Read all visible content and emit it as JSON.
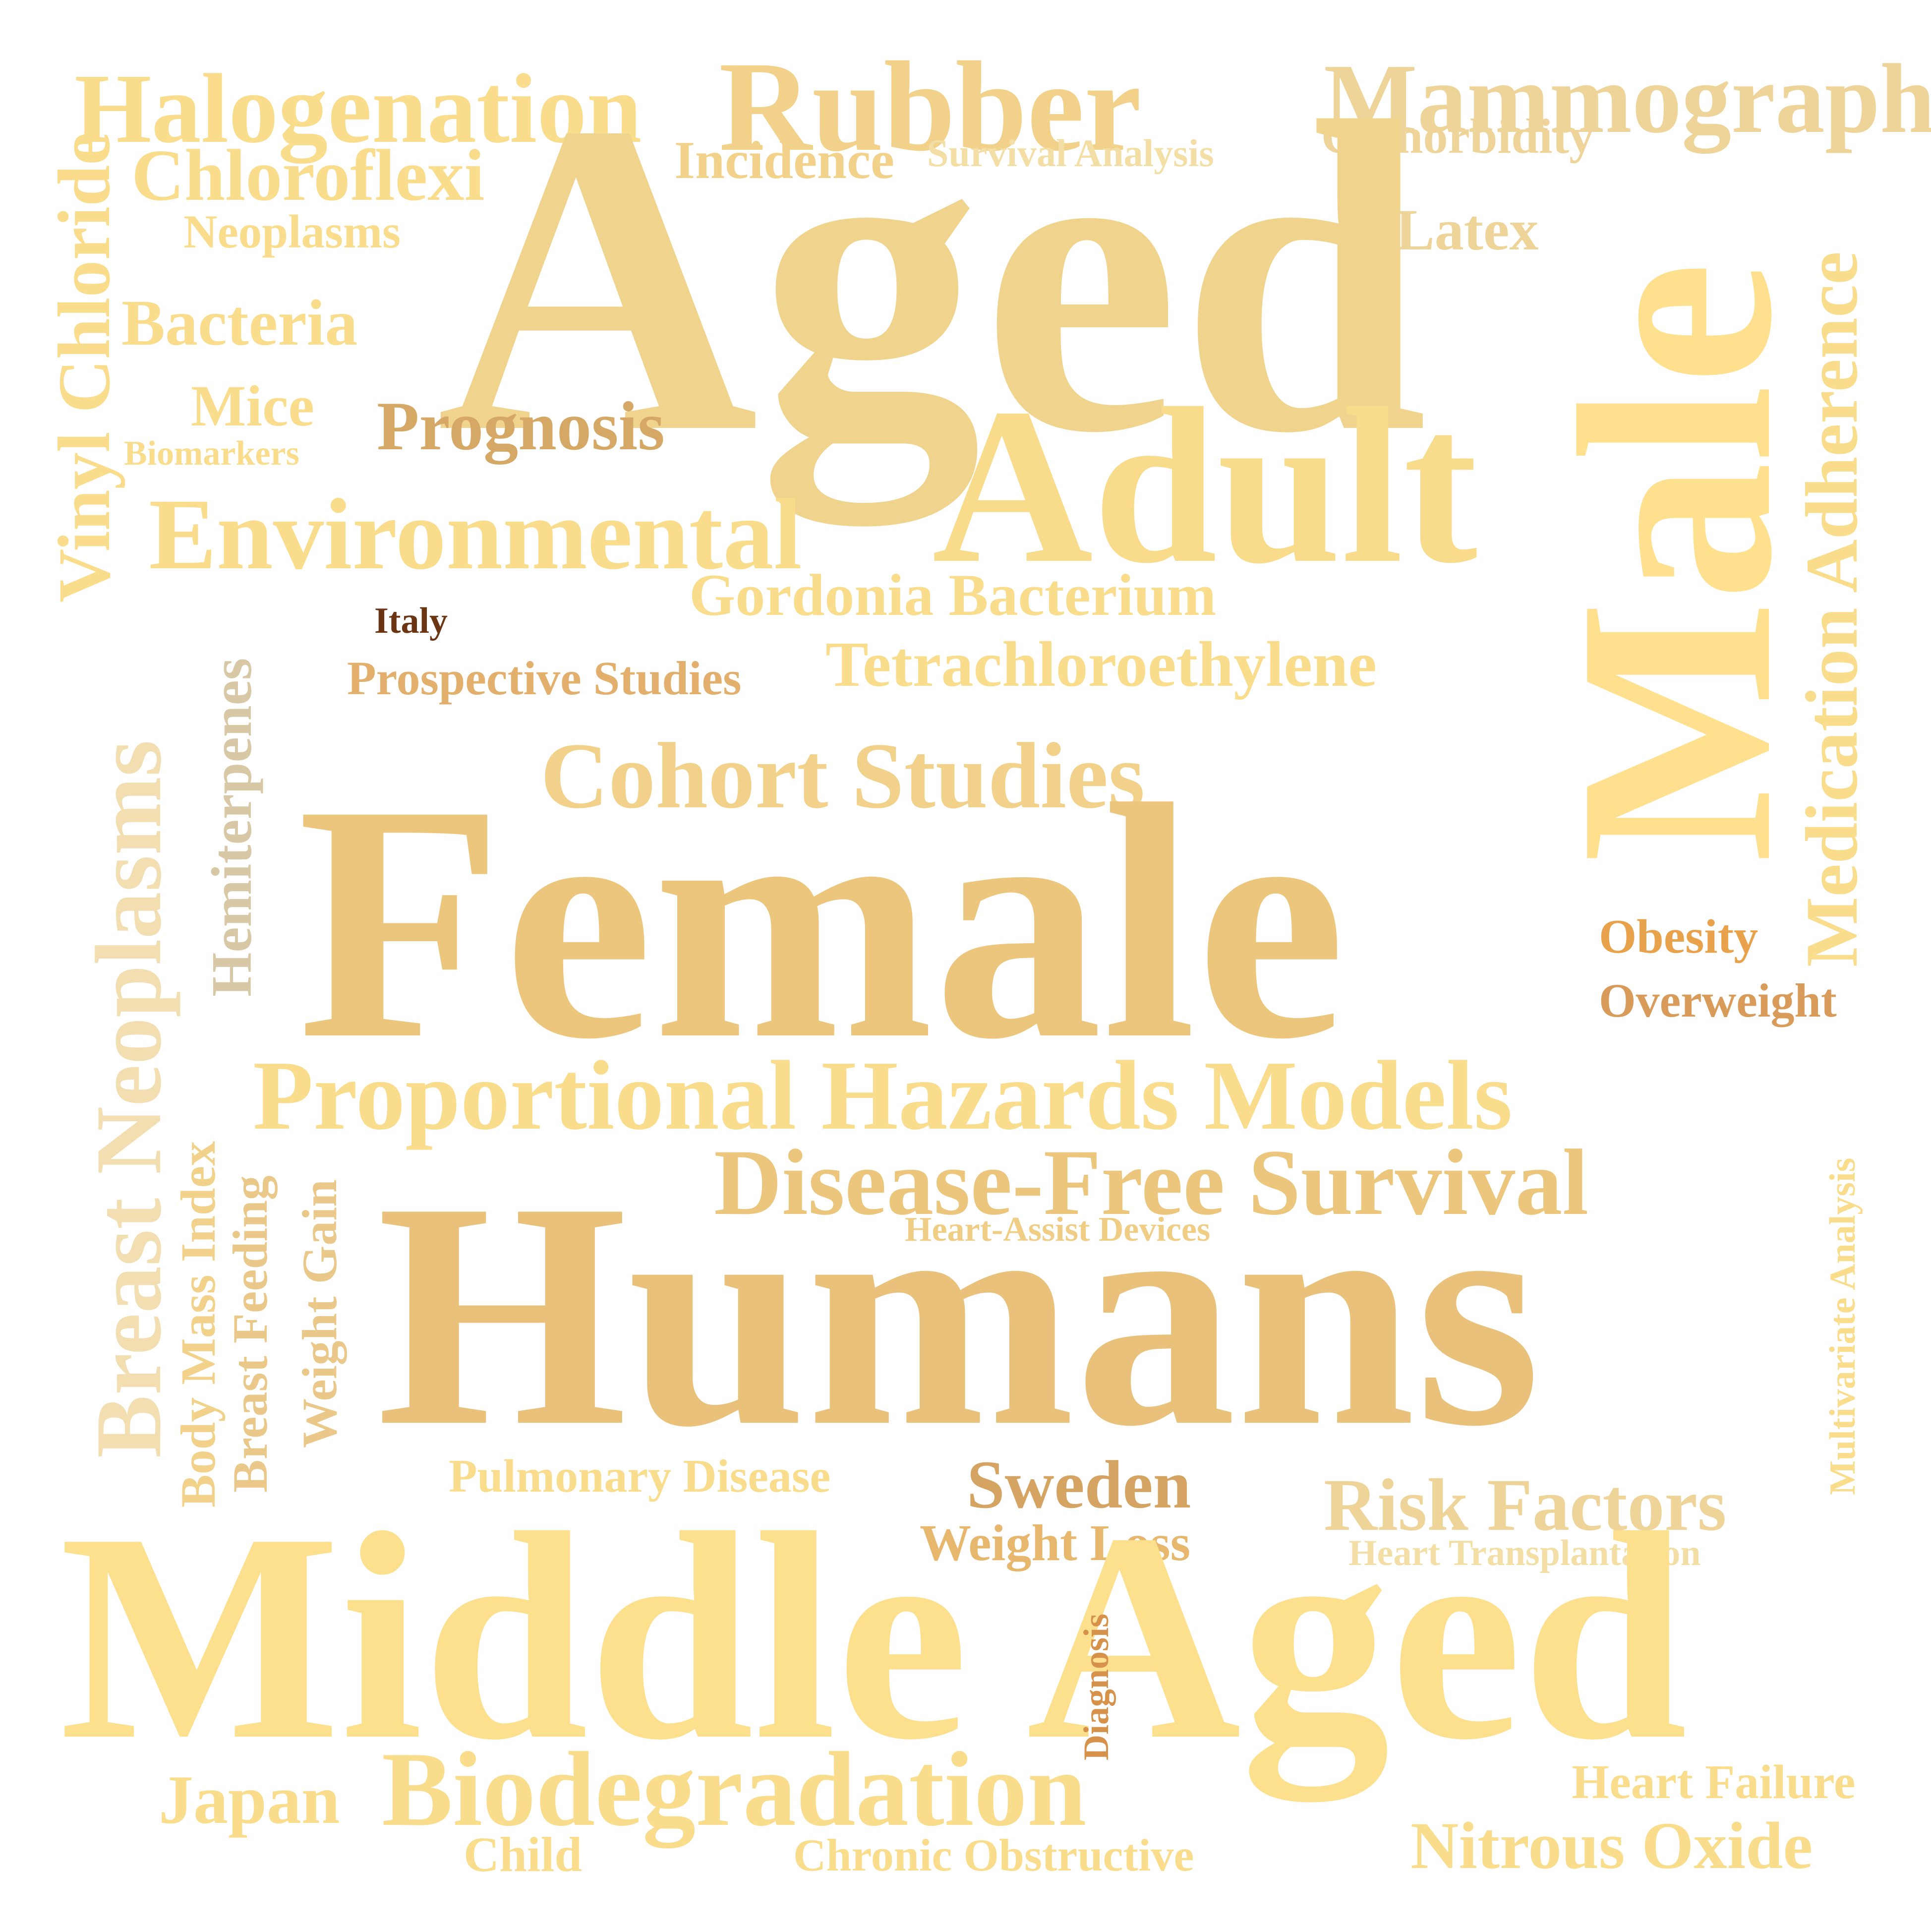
{
  "words": {
    "halogenation": {
      "text": "Halogenation",
      "color": "#F9DC8C"
    },
    "rubber": {
      "text": "Rubber",
      "color": "#F2D28A"
    },
    "mammography": {
      "text": "Mammography",
      "color": "#EFD49A"
    },
    "comorbidity": {
      "text": "Comorbidity",
      "color": "#EFD49A"
    },
    "incidence": {
      "text": "Incidence",
      "color": "#F2D28A"
    },
    "survival_analysis": {
      "text": "Survival Analysis",
      "color": "#F3DFA6"
    },
    "chloroflexi": {
      "text": "Chloroflexi",
      "color": "#F9DC8C"
    },
    "neoplasms": {
      "text": "Neoplasms",
      "color": "#F9DC8C"
    },
    "latex": {
      "text": "Latex",
      "color": "#EFD49A"
    },
    "aged": {
      "text": "Aged",
      "color": "#F0D48E"
    },
    "vinyl_chloride": {
      "text": "Vinyl Chloride",
      "color": "#F9DC8C"
    },
    "bacteria": {
      "text": "Bacteria",
      "color": "#F9DC8C"
    },
    "mice": {
      "text": "Mice",
      "color": "#F9DC8C"
    },
    "biomarkers": {
      "text": "Biomarkers",
      "color": "#F9DC8C"
    },
    "prognosis": {
      "text": "Prognosis",
      "color": "#D6A865"
    },
    "adult": {
      "text": "Adult",
      "color": "#F8DC8C"
    },
    "male": {
      "text": "Male",
      "color": "#FFE08E"
    },
    "medication_adherence": {
      "text": "Medication Adherence",
      "color": "#F9DC8C"
    },
    "environmental": {
      "text": "Environmental",
      "color": "#F9DC8C"
    },
    "gordonia_bacterium": {
      "text": "Gordonia Bacterium",
      "color": "#F9DC8C"
    },
    "italy": {
      "text": "Italy",
      "color": "#6B3412"
    },
    "tetrachloroethylene": {
      "text": "Tetrachloroethylene",
      "color": "#F9DC8C"
    },
    "prospective_studies": {
      "text": "Prospective Studies",
      "color": "#E2AF6C"
    },
    "hemiterpenes": {
      "text": "Hemiterpenes",
      "color": "#D8C8A6"
    },
    "breast_neoplasms": {
      "text": "Breast Neoplasms",
      "color": "#F2DEB0"
    },
    "cohort_studies": {
      "text": "Cohort Studies",
      "color": "#F2D28A"
    },
    "female": {
      "text": "Female",
      "color": "#EDC67E"
    },
    "obesity": {
      "text": "Obesity",
      "color": "#E8A24C"
    },
    "overweight": {
      "text": "Overweight",
      "color": "#D99B5A"
    },
    "proportional_hazards_models": {
      "text": "Proportional Hazards Models",
      "color": "#F9DC8C"
    },
    "body_mass_index": {
      "text": "Body Mass Index",
      "color": "#F2D28A"
    },
    "breast_feeding": {
      "text": "Breast Feeding",
      "color": "#EAC88A"
    },
    "weight_gain": {
      "text": "Weight Gain",
      "color": "#EAC88A"
    },
    "disease_free_survival": {
      "text": "Disease-Free Survival",
      "color": "#EBC67C"
    },
    "multivariate_analysis": {
      "text": "Multivariate Analysis",
      "color": "#F9DC8C"
    },
    "heart_assist_devices": {
      "text": "Heart-Assist Devices",
      "color": "#EFCD84"
    },
    "humans": {
      "text": "Humans",
      "color": "#E9C17B"
    },
    "pulmonary_disease": {
      "text": "Pulmonary Disease",
      "color": "#F9DC8C"
    },
    "sweden": {
      "text": "Sweden",
      "color": "#D6A462"
    },
    "risk_factors": {
      "text": "Risk Factors",
      "color": "#EFD49A"
    },
    "weight_loss": {
      "text": "Weight Loss",
      "color": "#E6B76C"
    },
    "heart_transplantation": {
      "text": "Heart Transplantation",
      "color": "#F3DFA6"
    },
    "middle_aged": {
      "text": "Middle Aged",
      "color": "#FDE08E"
    },
    "diagnosis": {
      "text": "Diagnosis",
      "color": "#D6924A"
    },
    "japan": {
      "text": "Japan",
      "color": "#F9DC8C"
    },
    "biodegradation": {
      "text": "Biodegradation",
      "color": "#F9DC8C"
    },
    "heart_failure": {
      "text": "Heart Failure",
      "color": "#F9DC8C"
    },
    "child": {
      "text": "Child",
      "color": "#F9DC8C"
    },
    "chronic_obstructive": {
      "text": "Chronic Obstructive",
      "color": "#F9DC8C"
    },
    "nitrous_oxide": {
      "text": "Nitrous Oxide",
      "color": "#F9DC8C"
    }
  }
}
